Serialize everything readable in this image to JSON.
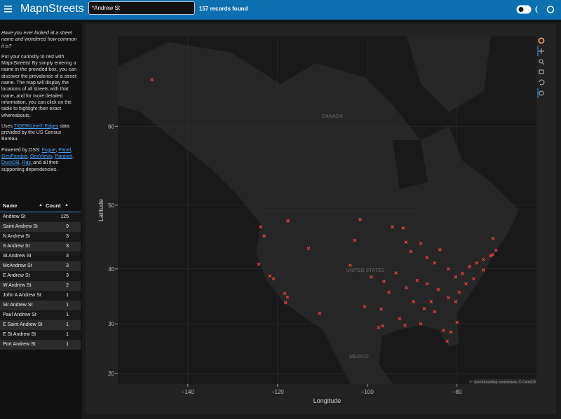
{
  "header": {
    "title": "MapnStreets",
    "search": "*Andrew St",
    "status": "157 records found"
  },
  "sidebar": {
    "intro": "Have you ever looked at a street name and wondered how common it is?",
    "description": "Put your curiosity to rest with MapnStreets! By simply entering a name in the provided box, you can discover the prevalence of a street name. The map will display the locations of all streets with that name, and for more detailed information, you can click on the table to highlight their exact whereabouts.",
    "source": {
      "before": "Uses ",
      "link": "TIGER/Line® Edges",
      "after": " data provided by the US Census Bureau."
    },
    "powered": {
      "before": "Powered by OSS: ",
      "links": [
        "Fugue",
        "Panel",
        "GeoPandas",
        "GeoViews",
        "Parquet",
        "DuckDB",
        "Ray"
      ],
      "separator": ", ",
      "after": ", and all their supporting dependencies."
    }
  },
  "table": {
    "columns": [
      "Name",
      "Count"
    ],
    "rows": [
      [
        "Andrew St",
        125
      ],
      [
        "Saint Andrew St",
        9
      ],
      [
        "N Andrew St",
        3
      ],
      [
        "S Andrew St",
        3
      ],
      [
        "St Andrew St",
        3
      ],
      [
        "McAndrew St",
        3
      ],
      [
        "E Andrew St",
        3
      ],
      [
        "W Andrew St",
        2
      ],
      [
        "John A Andrew St",
        1
      ],
      [
        "Sir Andrew St",
        1
      ],
      [
        "Paul Andrew St",
        1
      ],
      [
        "E Saint Andrew St",
        1
      ],
      [
        "E St Andrew St",
        1
      ],
      [
        "Port Andrew St",
        1
      ]
    ]
  },
  "map": {
    "xlabel": "Longitude",
    "ylabel": "Latitude",
    "xlim": [
      -155.6,
      -62.3
    ],
    "ylim": [
      17.8,
      68.6
    ],
    "xticks": [
      {
        "value": -140,
        "label": "−140"
      },
      {
        "value": -120,
        "label": "−120"
      },
      {
        "value": -100,
        "label": "−100"
      },
      {
        "value": -80,
        "label": "−80"
      }
    ],
    "yticks": [
      20,
      30,
      40,
      50,
      60
    ],
    "point_color": "#ff4040",
    "regions": [
      "CANADA",
      "UNITED STATES",
      "MEXICO"
    ],
    "attribution": "© OpenStreetMap contributors, © CartoDB",
    "points": {
      "lon": [
        -148.0,
        -123.8,
        -117.7,
        -123.0,
        -113.1,
        -101.6,
        -102.8,
        -124.2,
        -121.7,
        -120.9,
        -118.4,
        -117.8,
        -118.2,
        -110.6,
        -100.6,
        -96.9,
        -96.6,
        -97.5,
        -91.6,
        -88.1,
        -83.0,
        -82.2,
        -81.4,
        -80.0,
        -94.4,
        -92.0,
        -91.4,
        -90.3,
        -88.1,
        -86.7,
        -85.0,
        -83.8,
        -81.9,
        -80.3,
        -78.8,
        -77.2,
        -75.6,
        -74.1,
        -72.5,
        -71.3,
        -72.0,
        -72.0,
        -74.1,
        -76.3,
        -78.0,
        -79.5,
        -81.9,
        -84.2,
        -86.6,
        -88.9,
        -91.3,
        -93.6,
        -96.3,
        -99.1,
        -89.7,
        -87.3,
        -85.0,
        -92.8,
        -95.2,
        -103.8,
        -85.8,
        -80.3
      ],
      "lat": [
        64.8,
        46.8,
        47.7,
        45.4,
        43.4,
        47.9,
        44.7,
        40.8,
        38.8,
        38.3,
        35.7,
        35.0,
        34.0,
        32.0,
        33.3,
        32.8,
        29.6,
        29.3,
        29.7,
        30.0,
        28.7,
        26.6,
        28.4,
        30.3,
        46.8,
        46.6,
        44.4,
        42.9,
        44.2,
        41.9,
        41.0,
        43.2,
        40.0,
        38.6,
        39.2,
        40.4,
        41.0,
        41.6,
        42.2,
        43.1,
        45.0,
        42.4,
        39.8,
        38.3,
        37.4,
        35.9,
        34.9,
        36.4,
        37.4,
        38.0,
        36.7,
        39.3,
        37.8,
        38.6,
        34.2,
        32.9,
        32.3,
        31.0,
        35.9,
        40.6,
        34.2,
        34.2
      ]
    }
  }
}
